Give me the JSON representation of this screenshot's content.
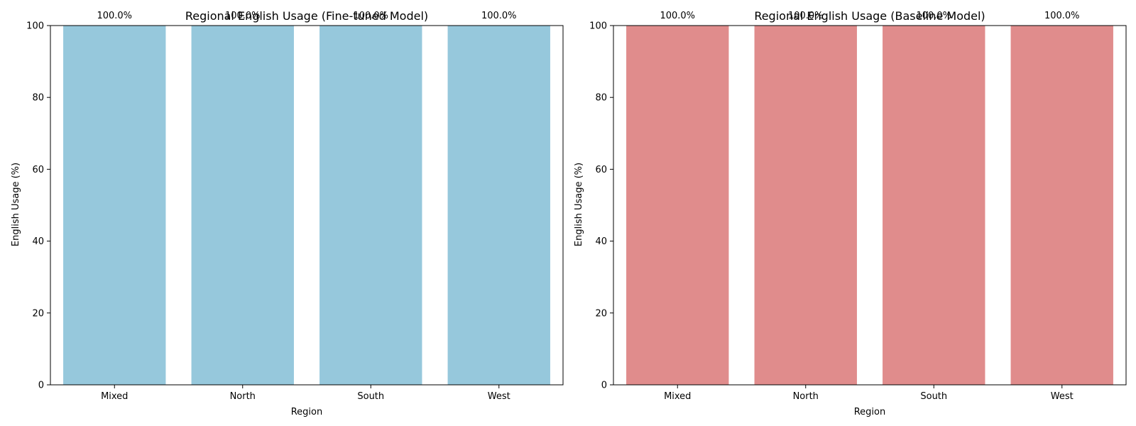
{
  "chart_data": [
    {
      "type": "bar",
      "title": "Regional English Usage (Fine-tuned Model)",
      "xlabel": "Region",
      "ylabel": "English Usage (%)",
      "categories": [
        "Mixed",
        "North",
        "South",
        "West"
      ],
      "values": [
        100.0,
        100.0,
        100.0,
        100.0
      ],
      "value_labels": [
        "100.0%",
        "100.0%",
        "100.0%",
        "100.0%"
      ],
      "ylim": [
        0,
        100
      ],
      "yticks": [
        "0",
        "20",
        "40",
        "60",
        "80",
        "100"
      ],
      "bar_color": "#96c8dc",
      "grid": false
    },
    {
      "type": "bar",
      "title": "Regional English Usage (Baseline Model)",
      "xlabel": "Region",
      "ylabel": "English Usage (%)",
      "categories": [
        "Mixed",
        "North",
        "South",
        "West"
      ],
      "values": [
        100.0,
        100.0,
        100.0,
        100.0
      ],
      "value_labels": [
        "100.0%",
        "100.0%",
        "100.0%",
        "100.0%"
      ],
      "ylim": [
        0,
        100
      ],
      "yticks": [
        "0",
        "20",
        "40",
        "60",
        "80",
        "100"
      ],
      "bar_color": "#e08c8c",
      "grid": false
    }
  ]
}
